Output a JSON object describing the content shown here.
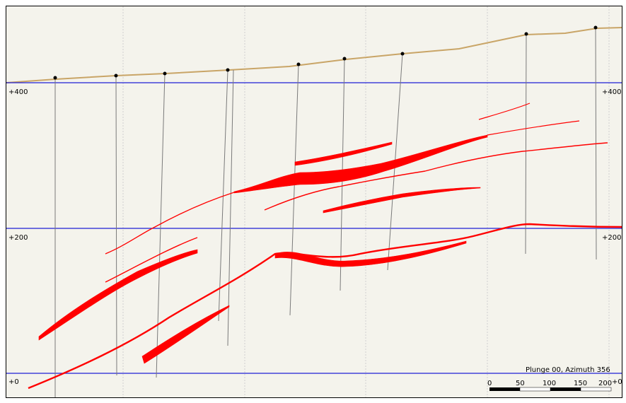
{
  "section": {
    "elevation_labels": {
      "e400": "+400",
      "e200": "+200",
      "e0": "+0"
    },
    "plunge_azimuth": "Plunge 00, Azimuth 356",
    "scale_ticks": [
      "0",
      "50",
      "100",
      "150",
      "200"
    ]
  },
  "colors": {
    "background": "#f4f3ec",
    "topography": "#c9a567",
    "elevation_lines": "#1f1fd6",
    "drillholes": "#7a7a7a",
    "ore_body": "#ff0000",
    "grid": "#cfcfcf"
  }
}
